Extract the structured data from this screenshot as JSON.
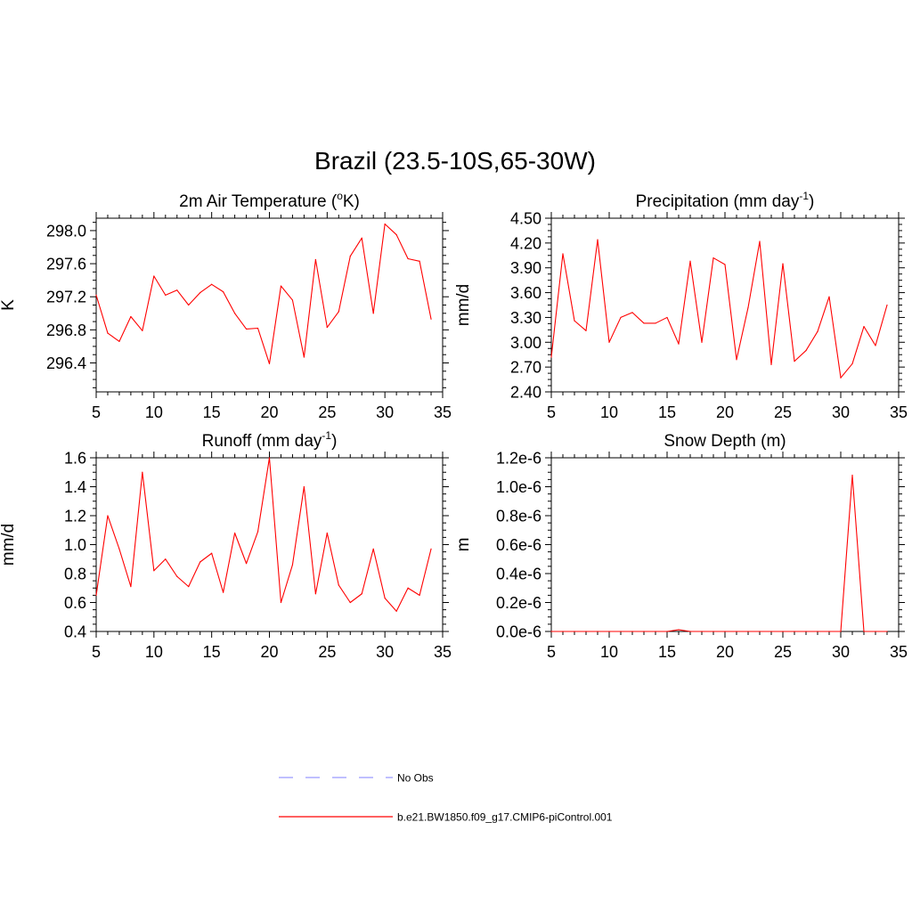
{
  "figure": {
    "title": "Brazil (23.5-10S,65-30W)"
  },
  "legend": {
    "items": [
      {
        "label": "No Obs",
        "color": "#9999ff",
        "dash": "dashed"
      },
      {
        "label": "b.e21.BW1850.f09_g17.CMIP6-piControl.001",
        "color": "#ff0000",
        "dash": "solid"
      }
    ]
  },
  "chart_data": [
    {
      "type": "line",
      "title": "2m Air Temperature (°K)",
      "title_main": "2m Air Temperature (",
      "title_sup": "o",
      "title_rest": "K)",
      "xlabel": "",
      "ylabel": "K",
      "xlim": [
        5,
        35
      ],
      "ylim": [
        296.05,
        298.15
      ],
      "xticks": [
        5,
        10,
        15,
        20,
        25,
        30,
        35
      ],
      "yticks": [
        296.4,
        296.8,
        297.2,
        297.6,
        298.0
      ],
      "ytick_labels": [
        "296.4",
        "296.8",
        "297.2",
        "297.6",
        "298.0"
      ],
      "series": [
        {
          "name": "b.e21.BW1850.f09_g17.CMIP6-piControl.001",
          "color": "#ff0000",
          "x": [
            5,
            6,
            7,
            8,
            9,
            10,
            11,
            12,
            13,
            14,
            15,
            16,
            17,
            18,
            19,
            20,
            21,
            22,
            23,
            24,
            25,
            26,
            27,
            28,
            29,
            30,
            31,
            32,
            33,
            34
          ],
          "y": [
            297.22,
            296.76,
            296.66,
            296.96,
            296.79,
            297.45,
            297.22,
            297.28,
            297.1,
            297.25,
            297.35,
            297.26,
            297.0,
            296.81,
            296.82,
            296.39,
            297.33,
            297.16,
            296.47,
            297.65,
            296.83,
            297.02,
            297.69,
            297.91,
            297.0,
            298.08,
            297.95,
            297.66,
            297.63,
            296.93
          ]
        }
      ]
    },
    {
      "type": "line",
      "title": "Precipitation (mm day-1)",
      "title_main": "Precipitation (mm day",
      "title_sup": "-1",
      "title_rest": ")",
      "xlabel": "",
      "ylabel": "mm/d",
      "xlim": [
        5,
        35
      ],
      "ylim": [
        2.4,
        4.5
      ],
      "xticks": [
        5,
        10,
        15,
        20,
        25,
        30,
        35
      ],
      "yticks": [
        2.4,
        2.7,
        3.0,
        3.3,
        3.6,
        3.9,
        4.2,
        4.5
      ],
      "ytick_labels": [
        "2.40",
        "2.70",
        "3.00",
        "3.30",
        "3.60",
        "3.90",
        "4.20",
        "4.50"
      ],
      "series": [
        {
          "name": "b.e21.BW1850.f09_g17.CMIP6-piControl.001",
          "color": "#ff0000",
          "x": [
            5,
            6,
            7,
            8,
            9,
            10,
            11,
            12,
            13,
            14,
            15,
            16,
            17,
            18,
            19,
            20,
            21,
            22,
            23,
            24,
            25,
            26,
            27,
            28,
            29,
            30,
            31,
            32,
            33,
            34
          ],
          "y": [
            2.82,
            4.07,
            3.26,
            3.14,
            4.24,
            3.0,
            3.3,
            3.36,
            3.23,
            3.23,
            3.3,
            2.98,
            3.98,
            3.0,
            4.02,
            3.94,
            2.79,
            3.42,
            4.22,
            2.73,
            3.95,
            2.77,
            2.9,
            3.13,
            3.55,
            2.57,
            2.74,
            3.19,
            2.96,
            3.45
          ]
        }
      ]
    },
    {
      "type": "line",
      "title": "Runoff (mm day-1)",
      "title_main": "Runoff (mm day",
      "title_sup": "-1",
      "title_rest": ")",
      "xlabel": "",
      "ylabel": "mm/d",
      "xlim": [
        5,
        35
      ],
      "ylim": [
        0.4,
        1.6
      ],
      "xticks": [
        5,
        10,
        15,
        20,
        25,
        30,
        35
      ],
      "yticks": [
        0.4,
        0.6,
        0.8,
        1.0,
        1.2,
        1.4,
        1.6
      ],
      "ytick_labels": [
        "0.4",
        "0.6",
        "0.8",
        "1.0",
        "1.2",
        "1.4",
        "1.6"
      ],
      "series": [
        {
          "name": "b.e21.BW1850.f09_g17.CMIP6-piControl.001",
          "color": "#ff0000",
          "x": [
            5,
            6,
            7,
            8,
            9,
            10,
            11,
            12,
            13,
            14,
            15,
            16,
            17,
            18,
            19,
            20,
            21,
            22,
            23,
            24,
            25,
            26,
            27,
            28,
            29,
            30,
            31,
            32,
            33,
            34
          ],
          "y": [
            0.65,
            1.2,
            0.97,
            0.71,
            1.5,
            0.82,
            0.9,
            0.78,
            0.71,
            0.88,
            0.94,
            0.67,
            1.08,
            0.87,
            1.09,
            1.6,
            0.6,
            0.86,
            1.4,
            0.66,
            1.08,
            0.72,
            0.6,
            0.66,
            0.97,
            0.63,
            0.54,
            0.7,
            0.65,
            0.97
          ]
        }
      ]
    },
    {
      "type": "line",
      "title": "Snow Depth (m)",
      "title_main": "Snow Depth (m)",
      "title_sup": "",
      "title_rest": "",
      "xlabel": "",
      "ylabel": "m",
      "xlim": [
        5,
        35
      ],
      "ylim": [
        0,
        1.2e-06
      ],
      "xticks": [
        5,
        10,
        15,
        20,
        25,
        30,
        35
      ],
      "yticks": [
        0,
        2e-07,
        4e-07,
        6e-07,
        8e-07,
        1e-06,
        1.2e-06
      ],
      "ytick_labels": [
        "0.0e-6",
        "0.2e-6",
        "0.4e-6",
        "0.6e-6",
        "0.8e-6",
        "1.0e-6",
        "1.2e-6"
      ],
      "series": [
        {
          "name": "b.e21.BW1850.f09_g17.CMIP6-piControl.001",
          "color": "#ff0000",
          "x": [
            5,
            6,
            7,
            8,
            9,
            10,
            11,
            12,
            13,
            14,
            15,
            16,
            17,
            18,
            19,
            20,
            21,
            22,
            23,
            24,
            25,
            26,
            27,
            28,
            29,
            30,
            31,
            32,
            33,
            34
          ],
          "y": [
            0,
            0,
            0,
            0,
            0,
            0,
            0,
            0,
            0,
            0,
            0,
            1.2e-08,
            0,
            0,
            0,
            0,
            0,
            0,
            0,
            0,
            0,
            0,
            0,
            0,
            0,
            0,
            1.08e-06,
            0,
            0,
            0
          ]
        }
      ]
    }
  ]
}
